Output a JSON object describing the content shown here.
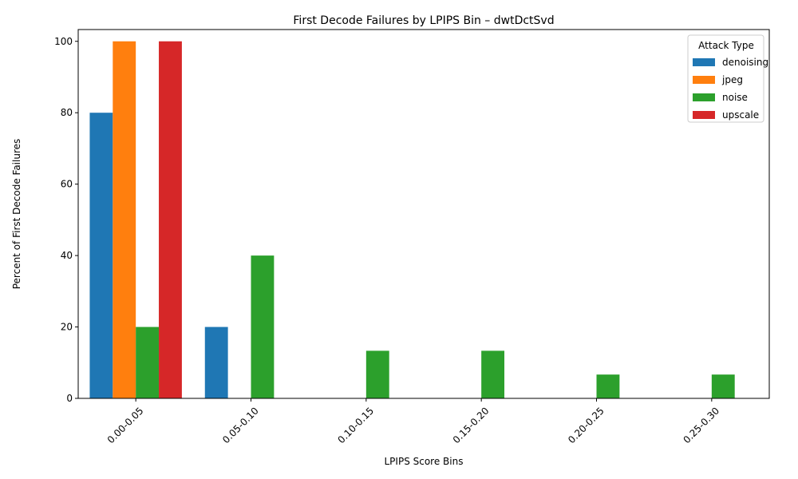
{
  "chart_data": {
    "type": "bar",
    "title": "First Decode Failures by LPIPS Bin – dwtDctSvd",
    "xlabel": "LPIPS Score Bins",
    "ylabel": "Percent of First Decode Failures",
    "categories": [
      "0.00-0.05",
      "0.05-0.10",
      "0.10-0.15",
      "0.15-0.20",
      "0.20-0.25",
      "0.25-0.30"
    ],
    "ylim": [
      0,
      103.3
    ],
    "yticks": [
      0,
      20,
      40,
      60,
      80,
      100
    ],
    "grid": false,
    "legend": {
      "title": "Attack Type",
      "placement": "top-right"
    },
    "series": [
      {
        "name": "denoising",
        "color": "#1f77b4",
        "values": [
          80,
          20,
          0,
          0,
          0,
          0
        ]
      },
      {
        "name": "jpeg",
        "color": "#ff7f0e",
        "values": [
          100,
          0,
          0,
          0,
          0,
          0
        ]
      },
      {
        "name": "noise",
        "color": "#2ca02c",
        "values": [
          20,
          40,
          13.33,
          13.33,
          6.67,
          6.67
        ]
      },
      {
        "name": "upscale",
        "color": "#d62728",
        "values": [
          100,
          0,
          0,
          0,
          0,
          0
        ]
      }
    ]
  }
}
